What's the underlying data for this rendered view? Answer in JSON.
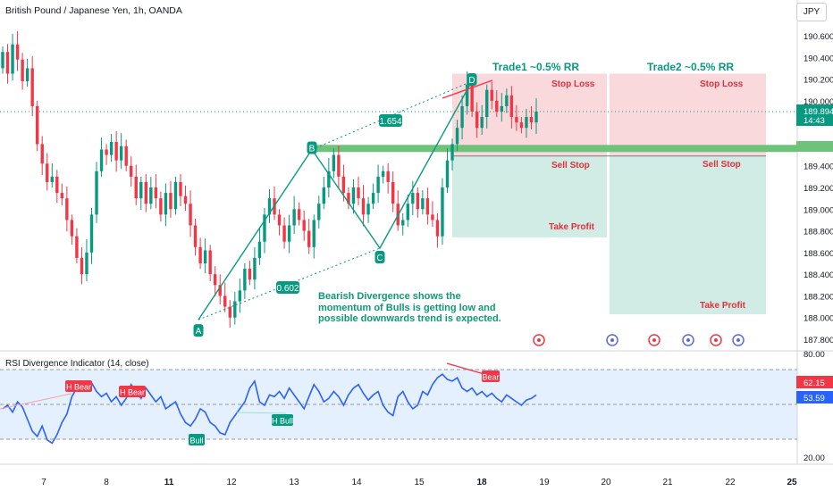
{
  "header": {
    "title": "British Pound / Japanese Yen, 1h, OANDA",
    "currency": "JPY"
  },
  "price_axis": {
    "ticks": [
      "190.600",
      "190.400",
      "190.200",
      "190.000",
      "189.800",
      "189.600",
      "189.400",
      "189.200",
      "189.000",
      "188.800",
      "188.600",
      "188.400",
      "188.200",
      "188.000",
      "187.800"
    ],
    "last_price_label": "189.894",
    "countdown_label": "14:43",
    "zone_boundary_label": "189.494"
  },
  "time_axis": {
    "ticks": [
      "7",
      "8",
      "11",
      "12",
      "13",
      "14",
      "15",
      "18",
      "19",
      "20",
      "21",
      "22",
      "25"
    ]
  },
  "colors": {
    "up": "#089981",
    "down": "#f23645",
    "pattern": "#089981",
    "stop_zone": "#f8cfd2",
    "profit_zone": "#cce9e2",
    "resistance": "#6fc27a",
    "rsi_line": "#2962ff",
    "rsi_band": "#e5f0fe"
  },
  "annotations": {
    "point_a": "A",
    "point_b": "B",
    "point_c": "C",
    "point_d": "D",
    "ratio_ac": "0.602",
    "ratio_bd": "1.654",
    "trade1_title": "Trade1 ~0.5% RR",
    "trade2_title": "Trade2 ~0.5% RR",
    "stop_loss": "Stop Loss",
    "sell_stop": "Sell Stop",
    "take_profit": "Take Profit",
    "note": "Bearish Divergence shows the momentum of Bulls is getting low and possible downwards trend is expected."
  },
  "rsi": {
    "title": "RSI Divergence Indicator (14, close)",
    "ticks": [
      "80.00",
      "62.15",
      "53.02",
      "20.00"
    ],
    "badges": [
      "62.15",
      "53.59"
    ],
    "labels": [
      "H Bear",
      "H Bear",
      "Bull",
      "H Bull",
      "Bear"
    ]
  },
  "chart_data": [
    {
      "type": "candlestick",
      "title": "British Pound / Japanese Yen, 1h, OANDA",
      "ylim": [
        187.73,
        190.71
      ],
      "x_ticks": [
        "7",
        "8",
        "11",
        "12",
        "13",
        "14",
        "15",
        "18",
        "19",
        "20",
        "21",
        "22",
        "25"
      ],
      "pattern": {
        "A": {
          "time": "11",
          "price": 187.98
        },
        "B": {
          "time": "13",
          "price": 189.55
        },
        "C": {
          "time": "14",
          "price": 188.64
        },
        "D": {
          "time": "18",
          "price": 190.18
        },
        "ratio_AC": 0.602,
        "ratio_BD": 1.654
      },
      "trades": [
        {
          "name": "Trade1 ~0.5% RR",
          "stop_loss": 190.25,
          "sell_stop": 189.49,
          "take_profit": 188.74
        },
        {
          "name": "Trade2 ~0.5% RR",
          "stop_loss": 190.25,
          "sell_stop": 189.49,
          "take_profit": 188.03
        }
      ],
      "resistance_level": 189.56,
      "last_price": 189.894,
      "close_series": [
        190.45,
        190.25,
        190.52,
        190.38,
        190.18,
        190.3,
        189.95,
        189.6,
        189.42,
        189.25,
        189.3,
        189.15,
        189.1,
        188.9,
        188.75,
        188.55,
        188.4,
        188.6,
        188.95,
        189.35,
        189.55,
        189.5,
        189.62,
        189.45,
        189.58,
        189.4,
        189.3,
        189.1,
        189.25,
        189.05,
        189.2,
        189.1,
        188.95,
        189.15,
        189.0,
        189.25,
        189.12,
        189.05,
        188.85,
        188.65,
        188.5,
        188.62,
        188.4,
        188.3,
        188.2,
        188.1,
        188.0,
        188.15,
        188.25,
        188.45,
        188.35,
        188.55,
        188.7,
        188.95,
        189.1,
        188.95,
        188.85,
        188.7,
        188.85,
        189.0,
        188.9,
        188.8,
        188.65,
        188.9,
        189.05,
        189.2,
        189.35,
        189.5,
        189.3,
        189.15,
        189.05,
        189.2,
        189.1,
        188.95,
        189.05,
        189.15,
        189.3,
        189.35,
        189.25,
        189.05,
        188.85,
        188.9,
        189.05,
        189.15,
        189.0,
        189.1,
        188.95,
        188.9,
        188.75,
        189.2,
        189.45,
        189.6,
        189.75,
        189.95,
        190.15,
        189.9,
        189.75,
        189.85,
        190.1,
        190.0,
        189.9,
        189.95,
        190.05,
        189.85,
        189.8,
        189.75,
        189.85,
        189.8,
        189.9
      ]
    },
    {
      "type": "line",
      "title": "RSI Divergence Indicator (14, close)",
      "ylim": [
        20,
        80
      ],
      "levels": [
        62.15,
        53.02
      ],
      "last_values": [
        62.15,
        53.59
      ],
      "values": [
        48,
        50,
        46,
        52,
        49,
        42,
        35,
        32,
        38,
        30,
        28,
        33,
        40,
        45,
        55,
        60,
        64,
        62,
        63,
        58,
        55,
        57,
        52,
        55,
        50,
        54,
        62,
        58,
        54,
        60,
        56,
        52,
        55,
        48,
        50,
        52,
        45,
        40,
        38,
        42,
        48,
        46,
        40,
        38,
        34,
        33,
        40,
        44,
        48,
        52,
        60,
        64,
        52,
        50,
        56,
        55,
        58,
        54,
        60,
        56,
        52,
        48,
        55,
        62,
        58,
        52,
        54,
        58,
        55,
        50,
        56,
        60,
        62,
        57,
        53,
        56,
        58,
        50,
        46,
        44,
        55,
        58,
        52,
        48,
        50,
        58,
        56,
        62,
        66,
        68,
        65,
        64,
        66,
        60,
        58,
        60,
        56,
        58,
        55,
        57,
        54,
        52,
        56,
        54,
        52,
        50,
        53,
        54,
        56
      ]
    }
  ]
}
